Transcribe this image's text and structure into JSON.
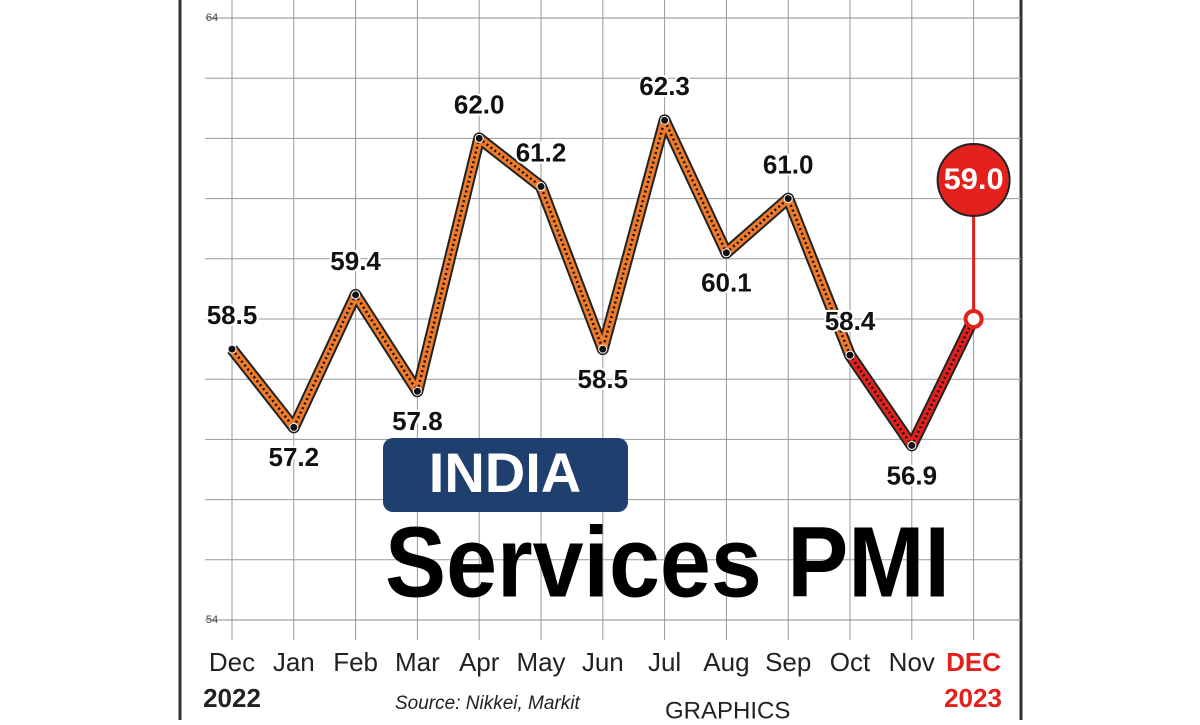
{
  "chart_data": {
    "type": "line",
    "title": "INDIA",
    "subtitle": "Services PMI",
    "source": "Source: Nikkei, Markit",
    "brand": "GRAPHICS",
    "start_year": "2022",
    "end_year": "2023",
    "categories": [
      "Dec",
      "Jan",
      "Feb",
      "Mar",
      "Apr",
      "May",
      "Jun",
      "Jul",
      "Aug",
      "Sep",
      "Oct",
      "Nov",
      "DEC"
    ],
    "series": [
      {
        "name": "Services PMI",
        "color": "#ee7a2a",
        "highlight_color": "#e3201b",
        "values": [
          58.5,
          57.2,
          59.4,
          57.8,
          62.0,
          61.2,
          58.5,
          62.3,
          60.1,
          61.0,
          58.4,
          56.9,
          59.0
        ],
        "value_labels": [
          "58.5",
          "57.2",
          "59.4",
          "57.8",
          "62.0",
          "61.2",
          "58.5",
          "62.3",
          "60.1",
          "61.0",
          "58.4",
          "56.9",
          "59.0"
        ]
      }
    ],
    "ylim": [
      54,
      64
    ],
    "yticks": [
      54,
      64
    ],
    "grid": true
  }
}
